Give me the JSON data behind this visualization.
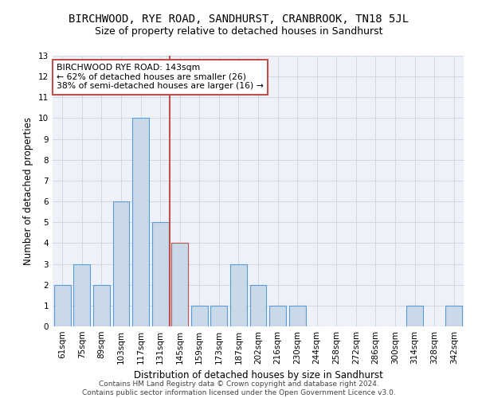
{
  "title": "BIRCHWOOD, RYE ROAD, SANDHURST, CRANBROOK, TN18 5JL",
  "subtitle": "Size of property relative to detached houses in Sandhurst",
  "xlabel": "Distribution of detached houses by size in Sandhurst",
  "ylabel": "Number of detached properties",
  "footer_line1": "Contains HM Land Registry data © Crown copyright and database right 2024.",
  "footer_line2": "Contains public sector information licensed under the Open Government Licence v3.0.",
  "annotation_title": "BIRCHWOOD RYE ROAD: 143sqm",
  "annotation_line1": "← 62% of detached houses are smaller (26)",
  "annotation_line2": "38% of semi-detached houses are larger (16) →",
  "categories": [
    "61sqm",
    "75sqm",
    "89sqm",
    "103sqm",
    "117sqm",
    "131sqm",
    "145sqm",
    "159sqm",
    "173sqm",
    "187sqm",
    "202sqm",
    "216sqm",
    "230sqm",
    "244sqm",
    "258sqm",
    "272sqm",
    "286sqm",
    "300sqm",
    "314sqm",
    "328sqm",
    "342sqm"
  ],
  "values": [
    2,
    3,
    2,
    6,
    10,
    5,
    4,
    1,
    1,
    3,
    2,
    1,
    1,
    0,
    0,
    0,
    0,
    0,
    1,
    0,
    1
  ],
  "bar_color": "#c9d9e8",
  "bar_edge_color": "#5b9bd5",
  "highlight_index": 6,
  "highlight_color": "#c9d9e8",
  "highlight_edge_color": "#c0504d",
  "vline_color": "#c0504d",
  "ylim": [
    0,
    13
  ],
  "yticks": [
    0,
    1,
    2,
    3,
    4,
    5,
    6,
    7,
    8,
    9,
    10,
    11,
    12,
    13
  ],
  "grid_color": "#d0d8e8",
  "bg_color": "#eef2f8",
  "title_fontsize": 10,
  "subtitle_fontsize": 9,
  "axis_label_fontsize": 8.5,
  "tick_fontsize": 7.5,
  "annotation_fontsize": 7.8,
  "footer_fontsize": 6.5
}
